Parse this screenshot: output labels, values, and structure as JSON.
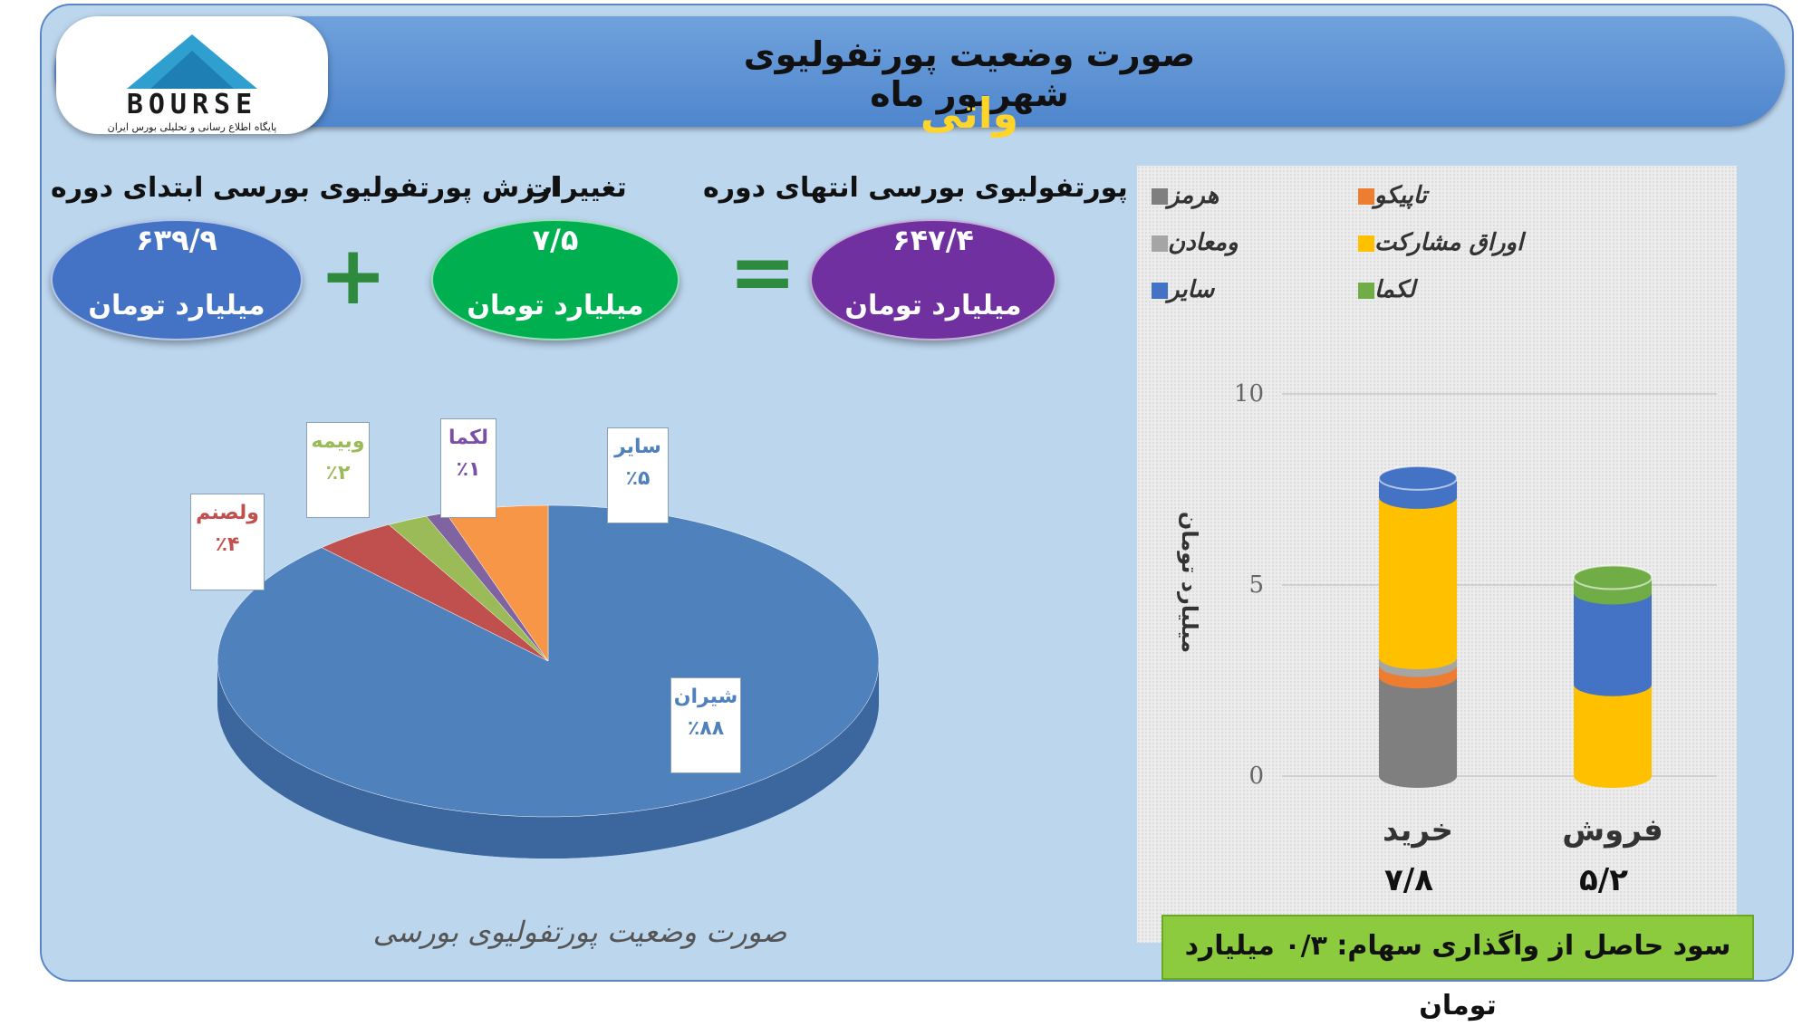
{
  "header": {
    "title": "صورت وضعیت پورتفولیوی شهریور ماه",
    "company": "واتی"
  },
  "logo": {
    "text": "BOURSE",
    "subtitle": "پایگاه اطلاع رسانی و تحلیلی بورس ایران"
  },
  "summary": {
    "start_label": "ارزش پورتفولیوی بورسی ابتدای دوره",
    "start_value": "۶۳۹/۹",
    "change_label": "تغییرات",
    "change_value": "۷/۵",
    "end_label": "ارزش پورتفولیوی بورسی انتهای دوره",
    "end_value": "۶۴۷/۴",
    "unit": "میلیارد تومان",
    "plus_sign": "+",
    "equals_sign": "=",
    "colors": {
      "start": "#4472c4",
      "change": "#00b050",
      "end": "#7030a0"
    }
  },
  "pie_footer": "صورت وضعیت پورتفولیوی بورسی",
  "gain_text": "سود حاصل از واگذاری سهام: ۰/۳ میلیارد تومان",
  "chart_data": [
    {
      "type": "pie",
      "title": "",
      "slices": [
        {
          "name": "شیران",
          "label": "٪۸۸",
          "value": 88,
          "color": "#4f81bd"
        },
        {
          "name": "ولصنم",
          "label": "٪۴",
          "value": 4,
          "color": "#c0504d"
        },
        {
          "name": "وبیمه",
          "label": "٪۲",
          "value": 2,
          "color": "#9bbb59"
        },
        {
          "name": "لکما",
          "label": "٪۱",
          "value": 1,
          "color": "#8064a2"
        },
        {
          "name": "سایر",
          "label": "٪۵",
          "value": 5,
          "color": "#f79646"
        }
      ]
    },
    {
      "type": "bar",
      "stacked": true,
      "ylabel": "میلیارد تومان",
      "ylim": [
        0,
        10
      ],
      "yticks": [
        "0",
        "5",
        "10"
      ],
      "categories": [
        "خرید",
        "فروش"
      ],
      "totals": [
        "۷/۸",
        "۵/۲"
      ],
      "series": [
        {
          "name": "هرمز",
          "color": "#7f7f7f",
          "values": [
            2.6,
            0
          ]
        },
        {
          "name": "تاپیکو",
          "color": "#ed7d31",
          "values": [
            0.3,
            0
          ]
        },
        {
          "name": "ومعادن",
          "color": "#a5a5a5",
          "values": [
            0.2,
            0
          ]
        },
        {
          "name": "اوراق مشارکت",
          "color": "#ffc000",
          "values": [
            4.2,
            2.4
          ]
        },
        {
          "name": "سایر",
          "color": "#4472c4",
          "values": [
            0.5,
            2.4
          ]
        },
        {
          "name": "لکما",
          "color": "#70ad47",
          "values": [
            0,
            0.4
          ]
        }
      ]
    }
  ]
}
